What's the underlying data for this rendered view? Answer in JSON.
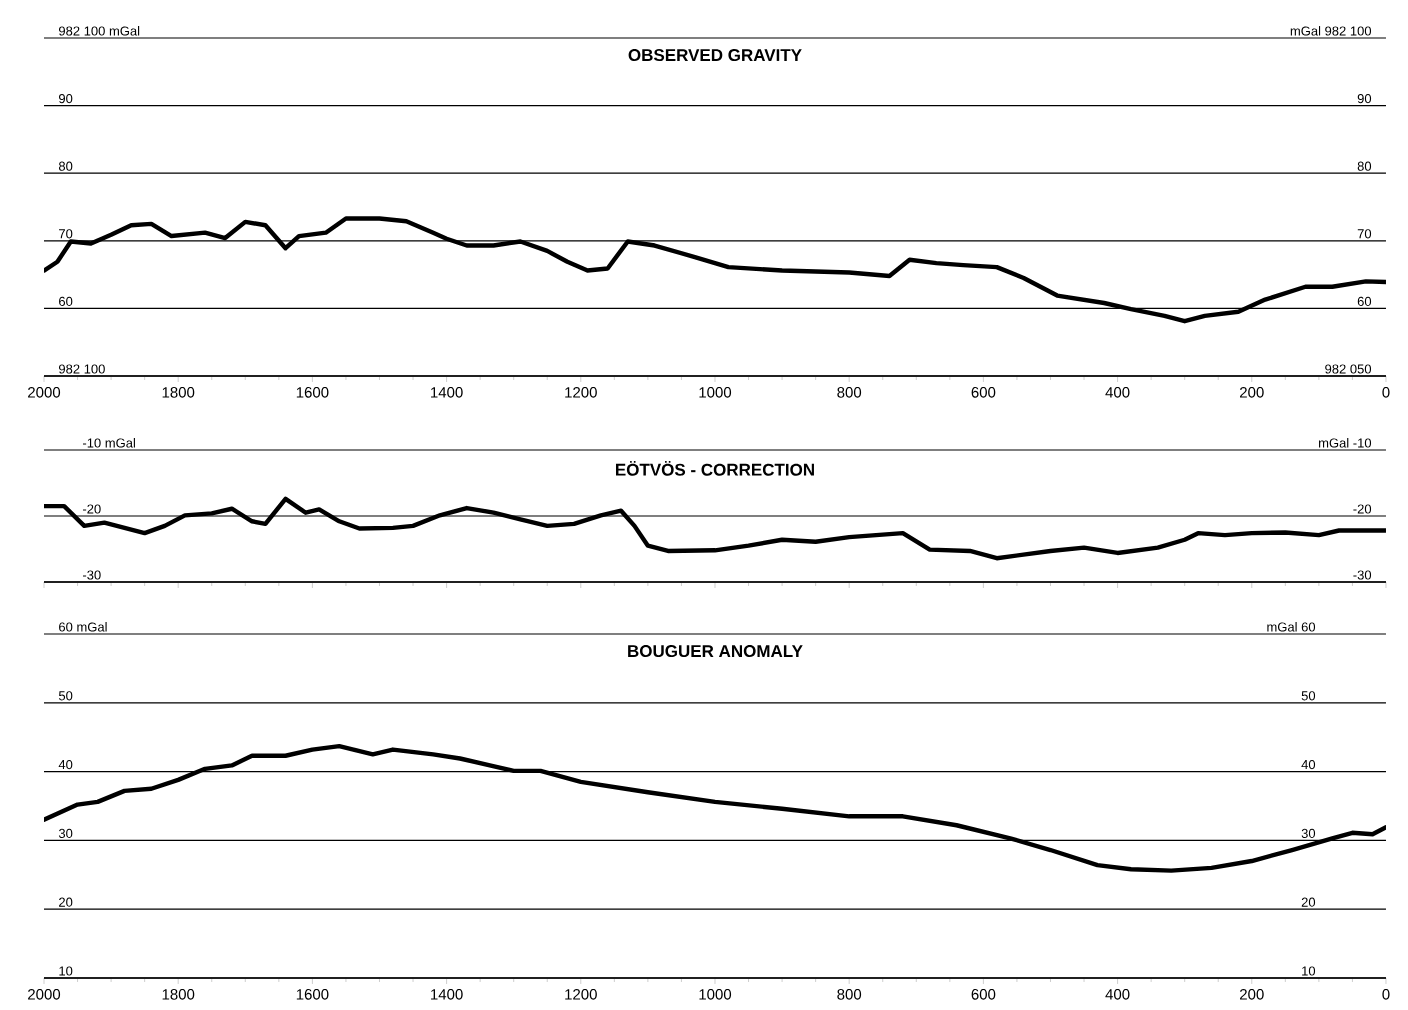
{
  "chart_data": [
    {
      "type": "line",
      "title": "OBSERVED GRAVITY",
      "color": "#000000",
      "line_style": "solid",
      "marker": "none",
      "grid": "y",
      "xlim": [
        2000,
        0
      ],
      "xticks": [
        2000,
        1800,
        1600,
        1400,
        1200,
        1000,
        800,
        600,
        400,
        200,
        0
      ],
      "ylim": [
        50,
        100
      ],
      "yticks": [
        {
          "value": 50,
          "label": null
        },
        60,
        70,
        80,
        90,
        {
          "value": 100,
          "label": null
        }
      ],
      "y2lim": [
        50,
        100
      ],
      "y2ticks": [
        {
          "value": 50,
          "label": null
        },
        60,
        70,
        80,
        90,
        {
          "value": 100,
          "label": null
        }
      ],
      "annotations": [
        "982 100 mGal",
        "mGal 982 100",
        "982 100",
        "982 050"
      ],
      "x": [
        2000,
        1980,
        1960,
        1930,
        1900,
        1870,
        1840,
        1810,
        1760,
        1730,
        1700,
        1670,
        1640,
        1620,
        1580,
        1550,
        1500,
        1460,
        1420,
        1400,
        1370,
        1330,
        1290,
        1250,
        1220,
        1190,
        1160,
        1130,
        1090,
        1030,
        980,
        900,
        800,
        740,
        710,
        670,
        630,
        580,
        540,
        490,
        420,
        380,
        330,
        300,
        270,
        220,
        180,
        120,
        80,
        30,
        0
      ],
      "values": [
        65.6,
        66.9,
        69.9,
        69.6,
        70.9,
        72.3,
        72.5,
        70.7,
        71.2,
        70.4,
        72.8,
        72.3,
        68.9,
        70.7,
        71.2,
        73.3,
        73.3,
        72.9,
        71.2,
        70.3,
        69.3,
        69.3,
        69.9,
        68.5,
        66.9,
        65.6,
        65.9,
        69.9,
        69.3,
        67.6,
        66.1,
        65.6,
        65.3,
        64.8,
        67.2,
        66.7,
        66.4,
        66.1,
        64.5,
        61.9,
        60.8,
        59.9,
        58.9,
        58.1,
        58.9,
        59.5,
        61.3,
        63.2,
        63.2,
        64.0,
        63.9
      ]
    },
    {
      "type": "line",
      "title": "EÖTVÖS - CORRECTION",
      "color": "#000000",
      "line_style": "solid",
      "marker": "none",
      "grid": "y",
      "tick_labels": "y",
      "xlim": [
        2000,
        0
      ],
      "xticks": [
        2000,
        1800,
        1600,
        1400,
        1200,
        1000,
        800,
        600,
        400,
        200,
        0
      ],
      "ylim": [
        -30,
        -10
      ],
      "yticks": [
        -30,
        -20,
        {
          "value": -10,
          "label": "-10 mGal"
        }
      ],
      "y2lim": [
        -30,
        -10
      ],
      "y2ticks": [
        -30,
        -20,
        {
          "value": -10,
          "label": "mGal -10"
        }
      ],
      "x": [
        2000,
        1970,
        1940,
        1910,
        1880,
        1850,
        1820,
        1790,
        1750,
        1720,
        1690,
        1670,
        1640,
        1610,
        1590,
        1560,
        1530,
        1480,
        1450,
        1410,
        1370,
        1330,
        1290,
        1250,
        1210,
        1170,
        1140,
        1120,
        1100,
        1070,
        1000,
        950,
        900,
        850,
        800,
        720,
        680,
        620,
        580,
        500,
        450,
        400,
        340,
        300,
        280,
        240,
        200,
        150,
        100,
        70,
        0
      ],
      "values": [
        -18.5,
        -18.5,
        -21.5,
        -21,
        -21.8,
        -22.6,
        -21.5,
        -19.9,
        -19.6,
        -18.9,
        -20.8,
        -21.2,
        -17.4,
        -19.5,
        -19,
        -20.8,
        -21.9,
        -21.8,
        -21.5,
        -19.9,
        -18.8,
        -19.5,
        -20.5,
        -21.5,
        -21.2,
        -19.9,
        -19.2,
        -21.5,
        -24.5,
        -25.3,
        -25.2,
        -24.5,
        -23.6,
        -23.9,
        -23.2,
        -22.6,
        -25.1,
        -25.3,
        -26.4,
        -25.3,
        -24.8,
        -25.6,
        -24.8,
        -23.6,
        -22.6,
        -22.9,
        -22.6,
        -22.5,
        -22.9,
        -22.2,
        -22.2
      ]
    },
    {
      "type": "line",
      "title": "BOUGUER ANOMALY",
      "color": "#000000",
      "line_style": "solid",
      "marker": "none",
      "grid": "y",
      "xlim": [
        2000,
        0
      ],
      "xticks": [
        2000,
        1800,
        1600,
        1400,
        1200,
        1000,
        800,
        600,
        400,
        200,
        0
      ],
      "ylim": [
        10,
        60
      ],
      "yticks": [
        10,
        20,
        30,
        40,
        50,
        {
          "value": 60,
          "label": "60 mGal"
        }
      ],
      "y2lim": [
        10,
        60
      ],
      "y2ticks": [
        10,
        20,
        30,
        40,
        50,
        {
          "value": 60,
          "label": "mGal 60"
        }
      ],
      "x": [
        2000,
        1950,
        1920,
        1880,
        1840,
        1800,
        1760,
        1720,
        1690,
        1640,
        1600,
        1560,
        1510,
        1480,
        1420,
        1380,
        1300,
        1260,
        1200,
        1100,
        1000,
        900,
        800,
        720,
        640,
        560,
        500,
        430,
        380,
        320,
        260,
        200,
        140,
        80,
        50,
        20,
        0
      ],
      "values": [
        33.0,
        35.2,
        35.6,
        37.2,
        37.5,
        38.8,
        40.4,
        40.9,
        42.3,
        42.3,
        43.2,
        43.7,
        42.5,
        43.2,
        42.5,
        41.9,
        40.1,
        40.1,
        38.5,
        37.0,
        35.6,
        34.6,
        33.5,
        33.5,
        32.2,
        30.3,
        28.6,
        26.4,
        25.8,
        25.6,
        26.0,
        27.0,
        28.6,
        30.3,
        31.1,
        30.9,
        31.9
      ]
    }
  ]
}
